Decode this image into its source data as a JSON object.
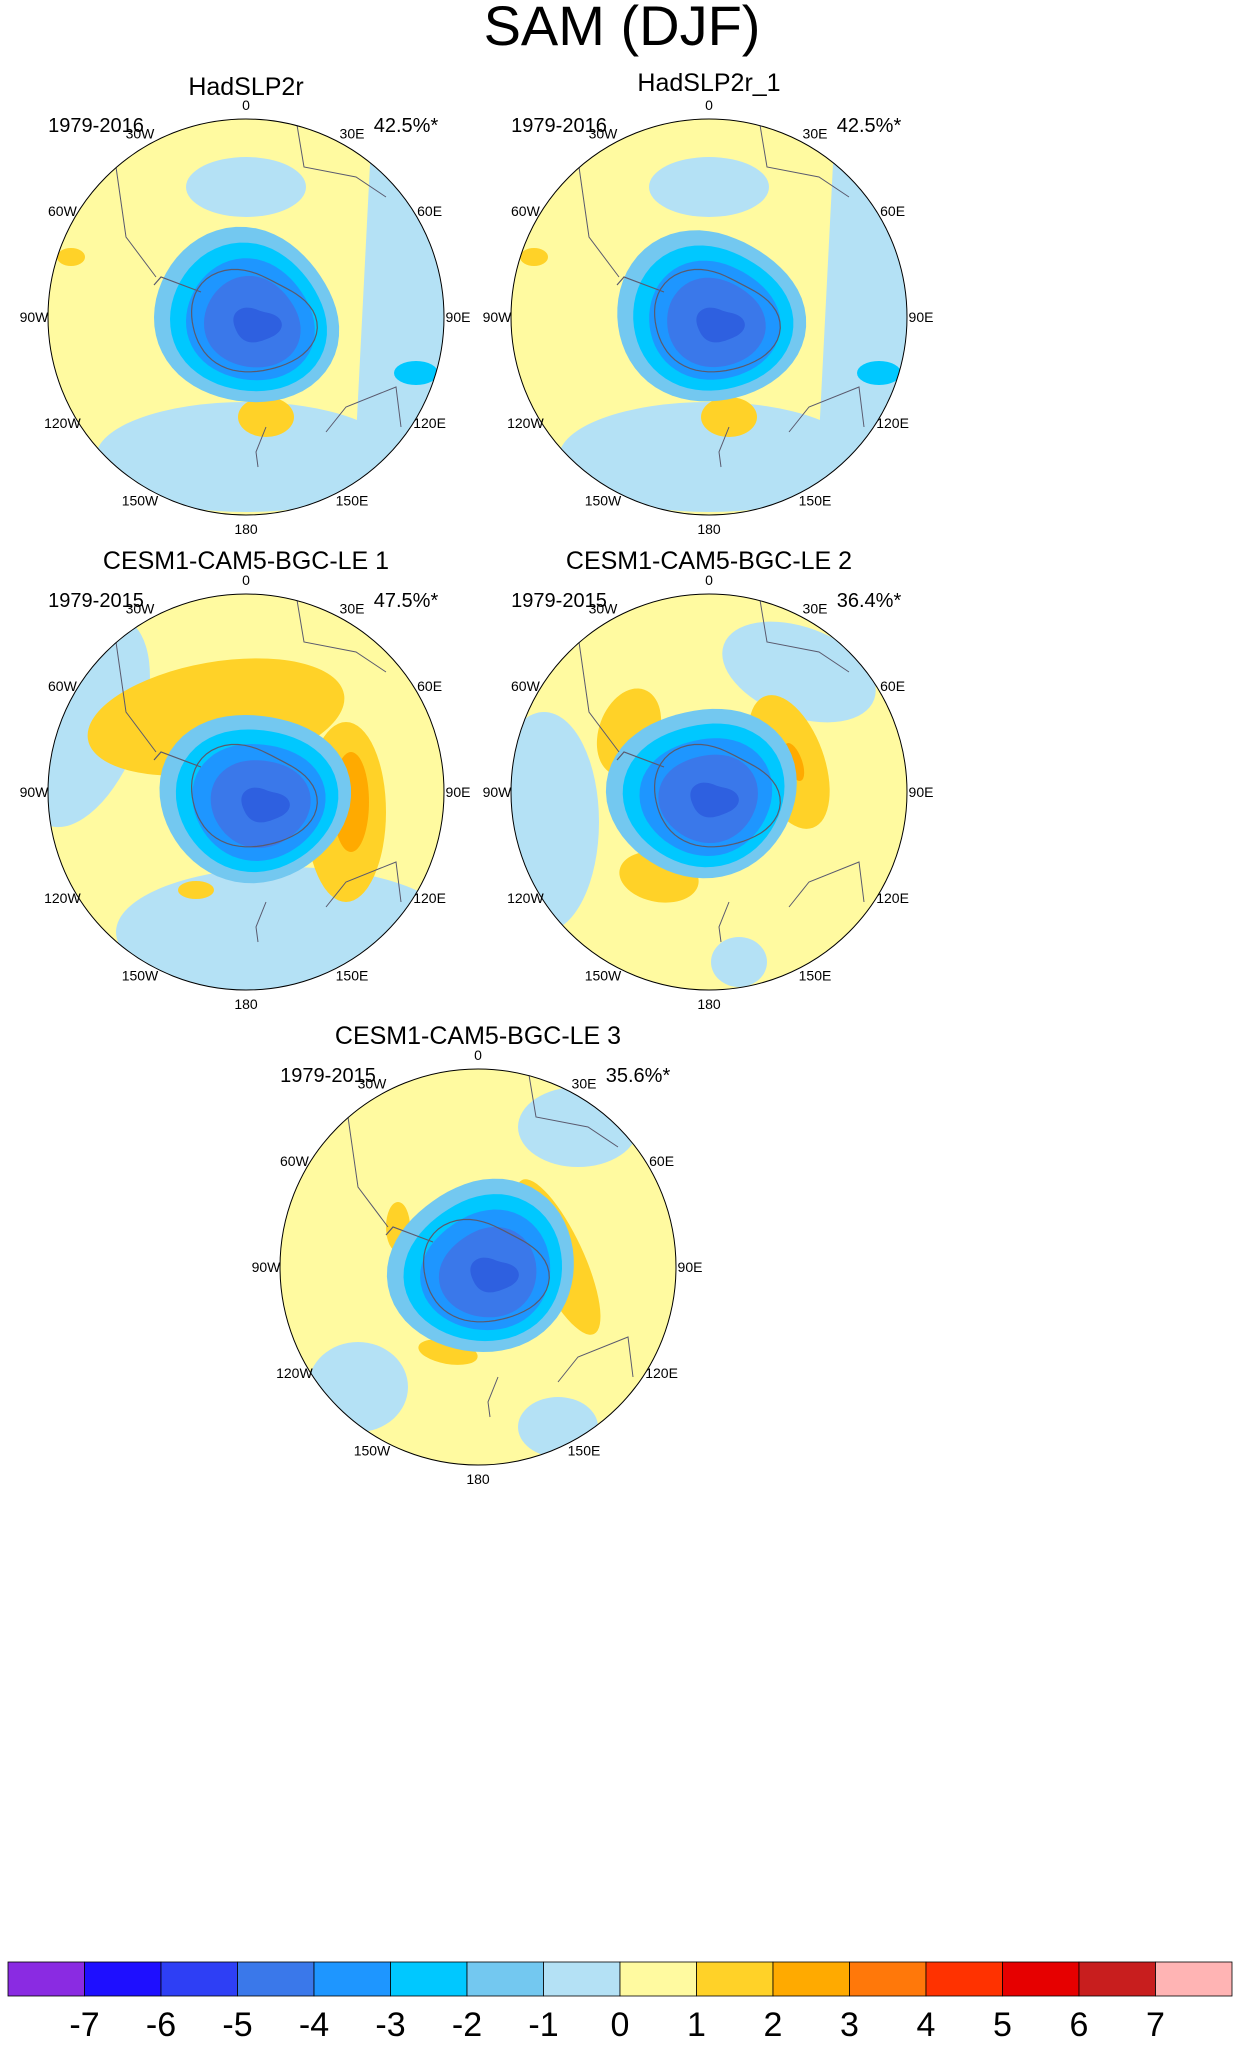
{
  "chart_data": {
    "type": "polar-contour-map",
    "title": "SAM (DJF)",
    "colorbar": {
      "levels": [
        "-7",
        "-6",
        "-5",
        "-4",
        "-3",
        "-2",
        "-1",
        "0",
        "1",
        "2",
        "3",
        "4",
        "5",
        "6",
        "7"
      ],
      "colors": [
        "#8a2be2",
        "#1e0fff",
        "#2e3ff5",
        "#3a78ea",
        "#1e96ff",
        "#00c8ff",
        "#73c8f0",
        "#b4e1f5",
        "#fffaa0",
        "#ffd228",
        "#ffaa00",
        "#ff780a",
        "#ff3200",
        "#e60000",
        "#c81e1e",
        "#ffb4b4"
      ]
    },
    "lon_labels": [
      "0",
      "30E",
      "60E",
      "90E",
      "120E",
      "150E",
      "180",
      "150W",
      "120W",
      "90W",
      "60W",
      "30W"
    ],
    "panels": [
      {
        "title": "HadSLP2r",
        "period": "1979-2016",
        "variance": "42.5%*"
      },
      {
        "title": "HadSLP2r_1",
        "period": "1979-2016",
        "variance": "42.5%*"
      },
      {
        "title": "CESM1-CAM5-BGC-LE 1",
        "period": "1979-2015",
        "variance": "47.5%*"
      },
      {
        "title": "CESM1-CAM5-BGC-LE 2",
        "period": "1979-2015",
        "variance": "36.4%*"
      },
      {
        "title": "CESM1-CAM5-BGC-LE 3",
        "period": "1979-2015",
        "variance": "35.6%*"
      }
    ]
  }
}
